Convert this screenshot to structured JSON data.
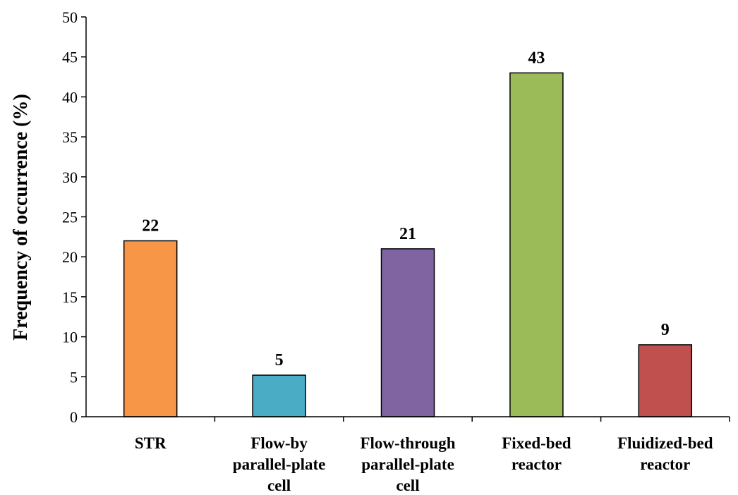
{
  "chart_data": {
    "type": "bar",
    "categories": [
      [
        "STR"
      ],
      [
        "Flow-by",
        "parallel-plate",
        "cell"
      ],
      [
        "Flow-through",
        "parallel-plate",
        "cell"
      ],
      [
        "Fixed-bed",
        "reactor"
      ],
      [
        "Fluidized-bed",
        "reactor"
      ]
    ],
    "values": [
      22,
      5.2,
      21,
      43,
      9
    ],
    "data_labels": [
      "22",
      "5",
      "21",
      "43",
      "9"
    ],
    "colors": [
      "#F79646",
      "#4BACC6",
      "#8064A2",
      "#9BBB59",
      "#C0504D"
    ],
    "ylabel": "Frequency of occurrence (%)",
    "ylim": [
      0,
      50
    ],
    "yticks": [
      0,
      5,
      10,
      15,
      20,
      25,
      30,
      35,
      40,
      45,
      50
    ],
    "grid": false
  }
}
